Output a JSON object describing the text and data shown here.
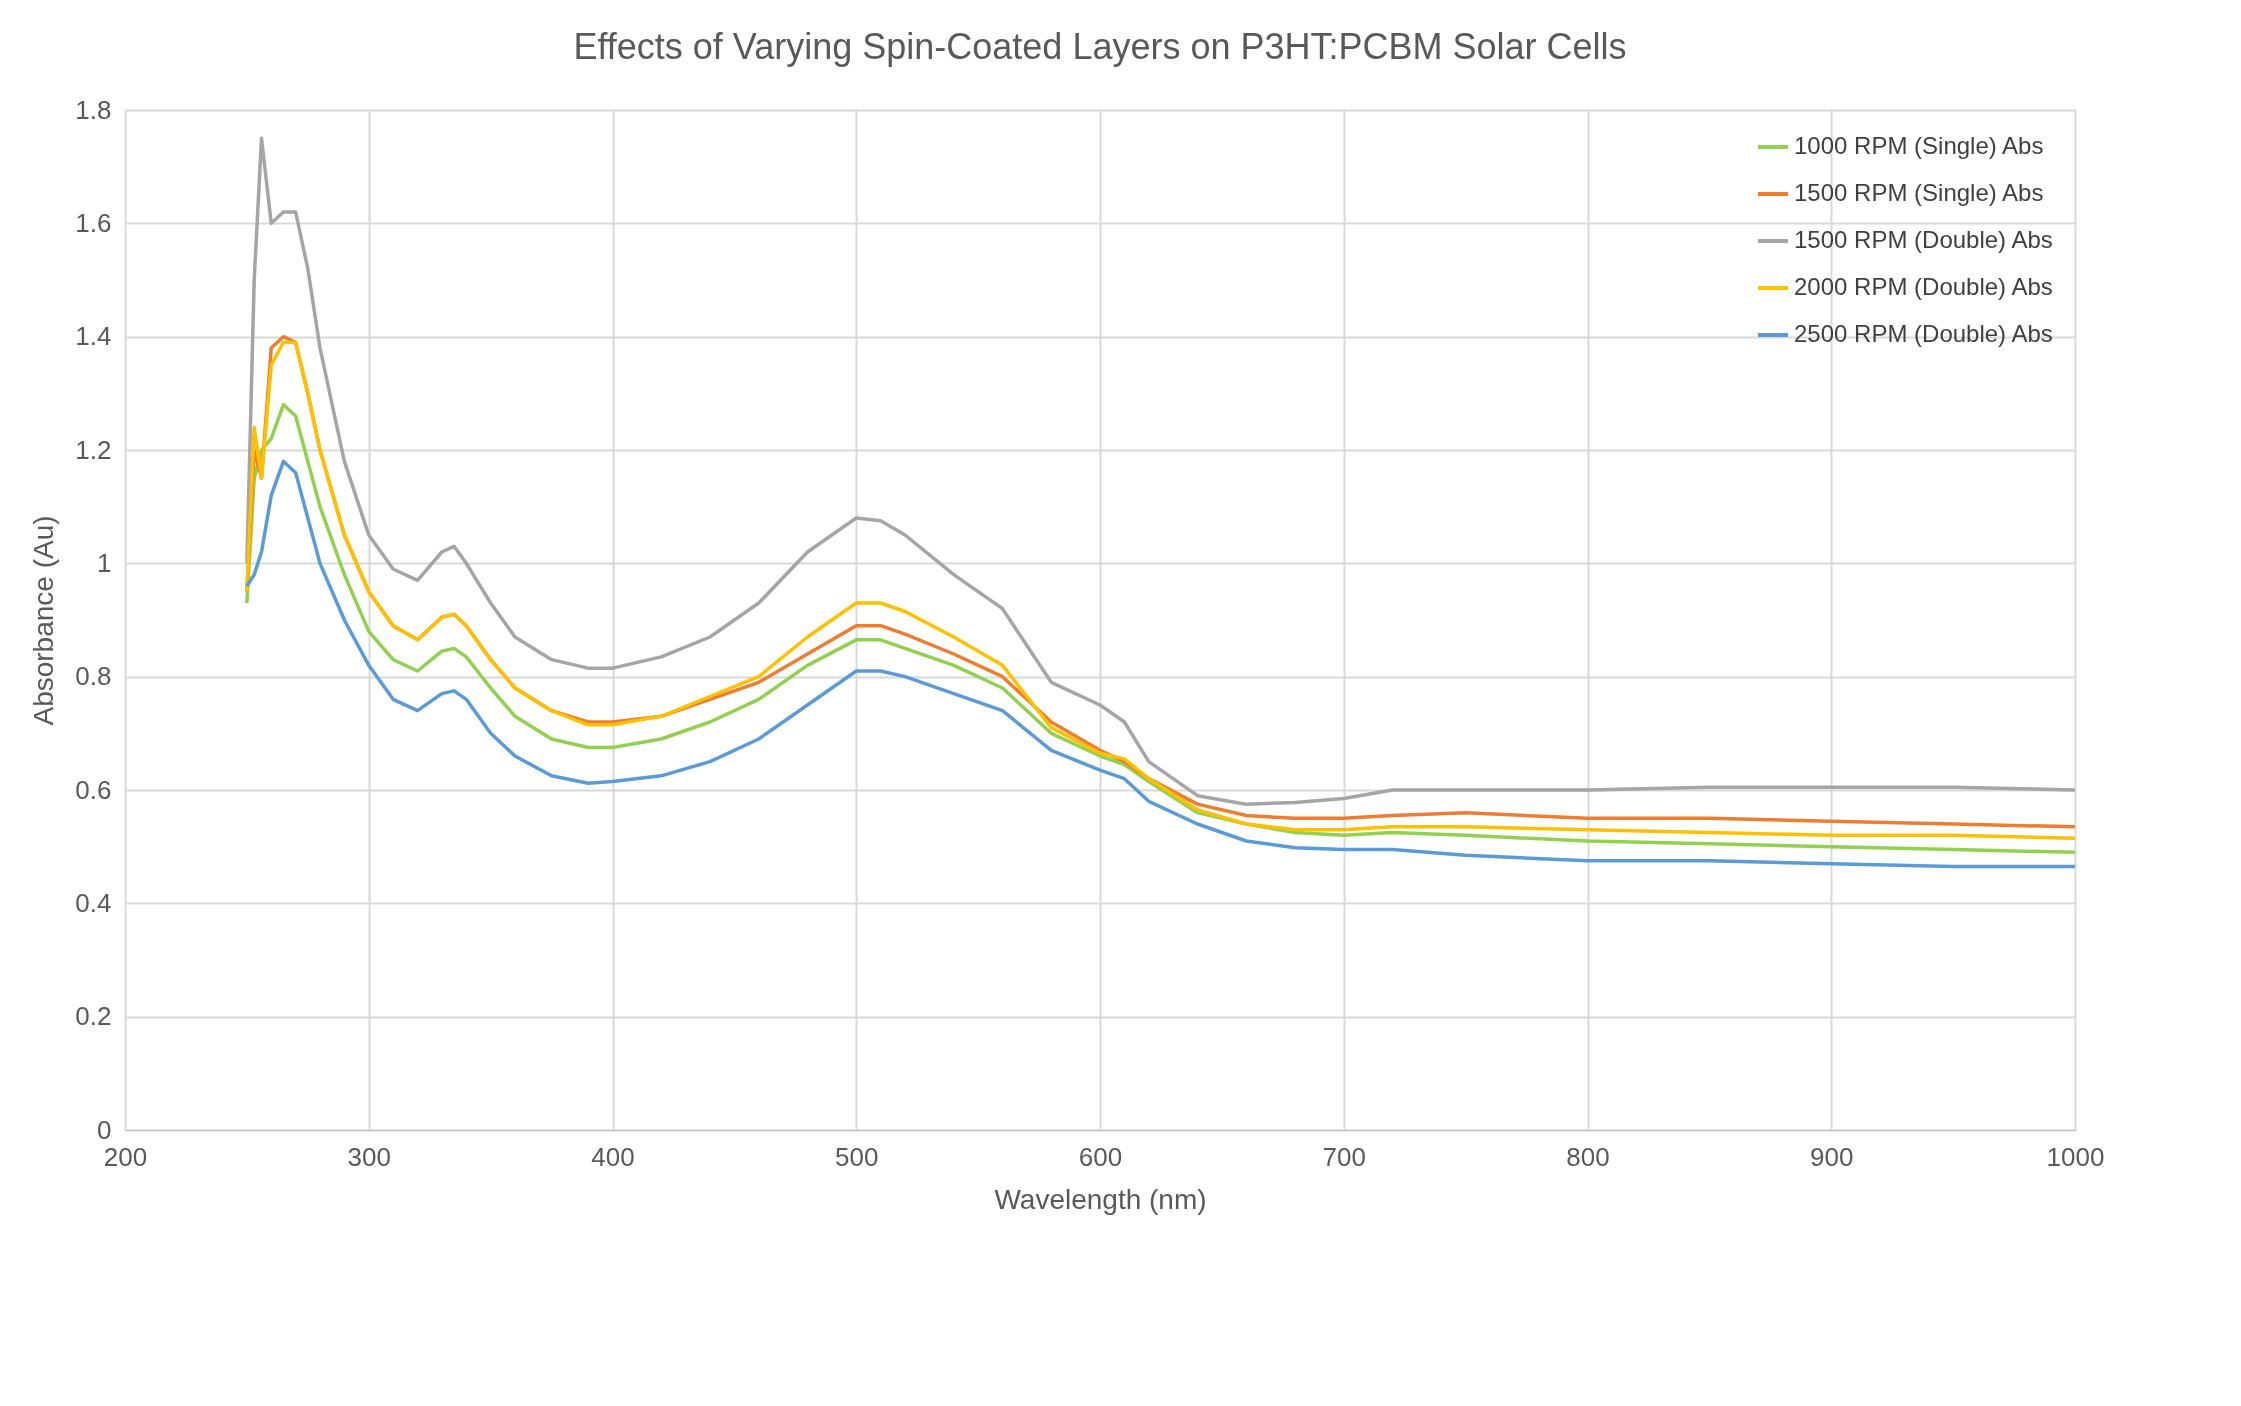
{
  "chart_data": {
    "type": "line",
    "title": "Effects of Varying Spin-Coated Layers on P3HT:PCBM Solar Cells",
    "xlabel": "Wavelength (nm)",
    "ylabel": "Absorbance (Au)",
    "x": [
      250,
      253,
      256,
      260,
      265,
      270,
      275,
      280,
      290,
      300,
      310,
      320,
      330,
      335,
      340,
      350,
      360,
      375,
      390,
      400,
      420,
      440,
      460,
      480,
      500,
      510,
      520,
      540,
      560,
      580,
      600,
      610,
      620,
      640,
      660,
      680,
      700,
      720,
      750,
      800,
      850,
      900,
      950,
      1000
    ],
    "series": [
      {
        "name": "1000 RPM (Single) Abs",
        "color": "#92d050",
        "values": [
          0.93,
          1.15,
          1.2,
          1.22,
          1.28,
          1.26,
          1.18,
          1.1,
          0.98,
          0.88,
          0.83,
          0.81,
          0.845,
          0.85,
          0.835,
          0.78,
          0.73,
          0.69,
          0.675,
          0.675,
          0.69,
          0.72,
          0.76,
          0.82,
          0.865,
          0.865,
          0.85,
          0.82,
          0.78,
          0.7,
          0.66,
          0.645,
          0.615,
          0.56,
          0.54,
          0.525,
          0.52,
          0.525,
          0.52,
          0.51,
          0.505,
          0.5,
          0.495,
          0.49
        ]
      },
      {
        "name": "1500 RPM (Single) Abs",
        "color": "#ed7d31",
        "values": [
          0.95,
          1.2,
          1.15,
          1.38,
          1.4,
          1.39,
          1.3,
          1.2,
          1.05,
          0.95,
          0.89,
          0.865,
          0.905,
          0.91,
          0.89,
          0.83,
          0.78,
          0.74,
          0.72,
          0.72,
          0.73,
          0.76,
          0.79,
          0.84,
          0.89,
          0.89,
          0.875,
          0.84,
          0.8,
          0.72,
          0.67,
          0.65,
          0.62,
          0.575,
          0.555,
          0.55,
          0.55,
          0.555,
          0.56,
          0.55,
          0.55,
          0.545,
          0.54,
          0.535
        ]
      },
      {
        "name": "1500 RPM (Double) Abs",
        "color": "#a5a5a5",
        "values": [
          1.0,
          1.5,
          1.75,
          1.6,
          1.62,
          1.62,
          1.52,
          1.38,
          1.18,
          1.05,
          0.99,
          0.97,
          1.02,
          1.03,
          1.0,
          0.93,
          0.87,
          0.83,
          0.815,
          0.815,
          0.835,
          0.87,
          0.93,
          1.02,
          1.08,
          1.075,
          1.05,
          0.98,
          0.92,
          0.79,
          0.75,
          0.72,
          0.65,
          0.59,
          0.575,
          0.578,
          0.585,
          0.6,
          0.6,
          0.6,
          0.605,
          0.605,
          0.605,
          0.6
        ]
      },
      {
        "name": "2000 RPM (Double) Abs",
        "color": "#ffc000",
        "values": [
          0.95,
          1.24,
          1.15,
          1.35,
          1.39,
          1.39,
          1.3,
          1.2,
          1.05,
          0.95,
          0.89,
          0.865,
          0.905,
          0.91,
          0.89,
          0.83,
          0.78,
          0.74,
          0.715,
          0.715,
          0.73,
          0.765,
          0.8,
          0.87,
          0.93,
          0.93,
          0.915,
          0.87,
          0.82,
          0.71,
          0.665,
          0.655,
          0.62,
          0.565,
          0.54,
          0.53,
          0.53,
          0.535,
          0.535,
          0.53,
          0.525,
          0.52,
          0.52,
          0.515
        ]
      },
      {
        "name": "2500 RPM (Double) Abs",
        "color": "#5b9bd5",
        "values": [
          0.96,
          0.98,
          1.02,
          1.12,
          1.18,
          1.16,
          1.08,
          1.0,
          0.9,
          0.82,
          0.76,
          0.74,
          0.77,
          0.775,
          0.76,
          0.7,
          0.66,
          0.625,
          0.612,
          0.615,
          0.625,
          0.65,
          0.69,
          0.75,
          0.81,
          0.81,
          0.8,
          0.77,
          0.74,
          0.67,
          0.635,
          0.62,
          0.58,
          0.54,
          0.51,
          0.498,
          0.495,
          0.495,
          0.485,
          0.475,
          0.475,
          0.47,
          0.465,
          0.465
        ]
      }
    ],
    "xlim": [
      200,
      1000
    ],
    "xticks": [
      200,
      300,
      400,
      500,
      600,
      700,
      800,
      900,
      1000
    ],
    "ylim": [
      0,
      1.8
    ],
    "yticks": [
      0,
      0.2,
      0.4,
      0.6,
      0.8,
      1,
      1.2,
      1.4,
      1.6,
      1.8
    ],
    "grid": true,
    "legend": "top right",
    "marker": "none",
    "line_style": "solid"
  }
}
